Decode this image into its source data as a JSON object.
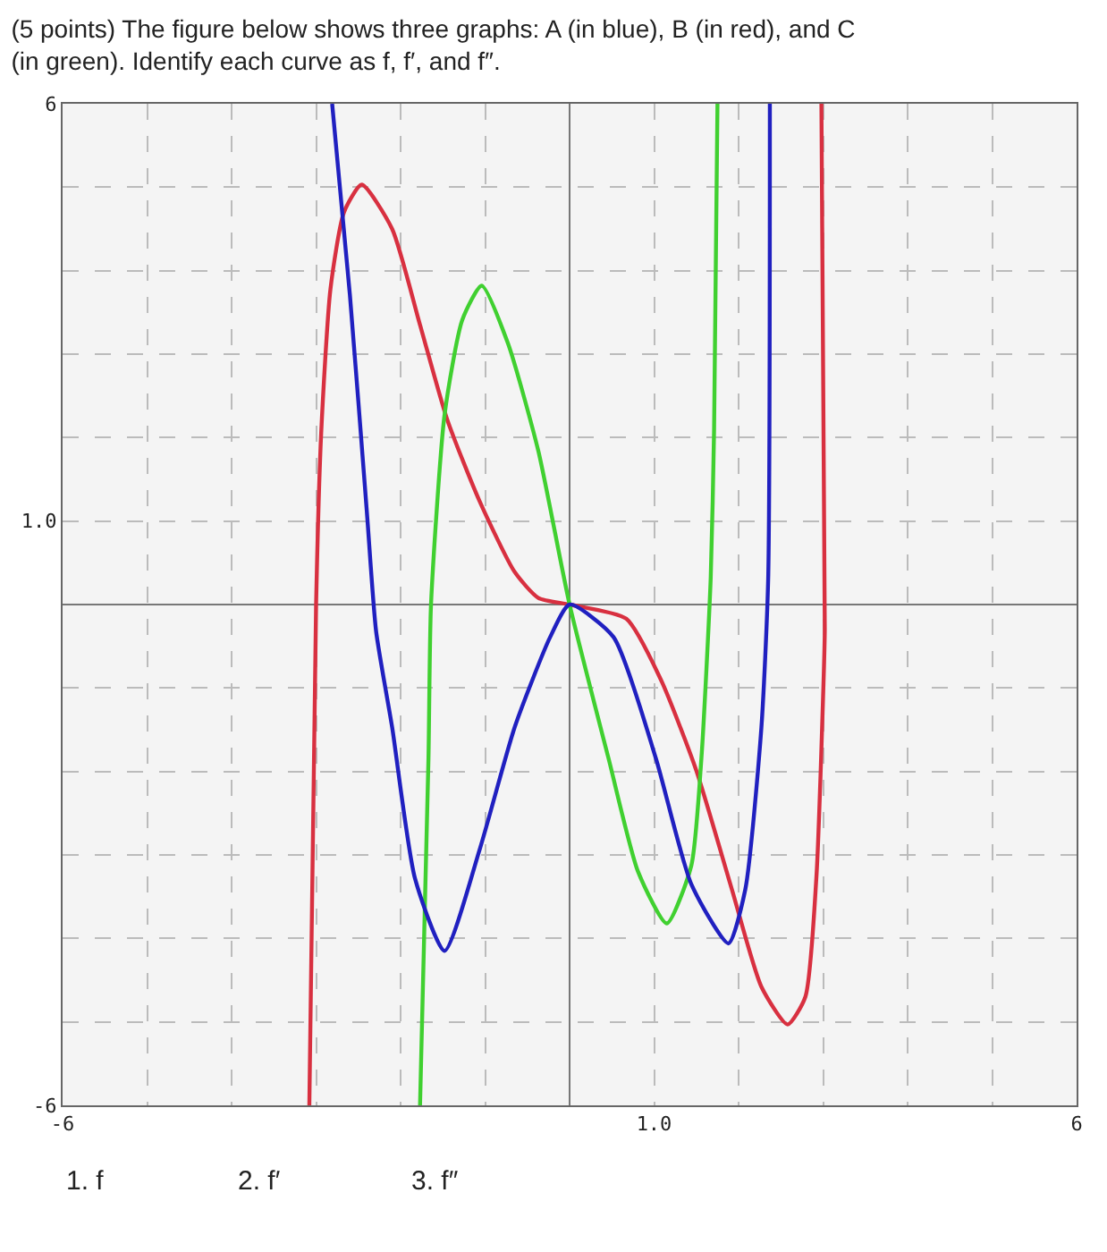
{
  "chart_data": {
    "type": "line",
    "title": "(5 points) The figure below shows three graphs: A (in blue), B (in red), and C (in green). Identify each curve as f, f′, and f″.",
    "xlim": [
      -6,
      6
    ],
    "ylim": [
      -6,
      6
    ],
    "xticks": [
      -6,
      {
        "value": -5,
        "label": null
      },
      {
        "value": -4,
        "label": null
      },
      {
        "value": -3,
        "label": null
      },
      {
        "value": -2,
        "label": null
      },
      {
        "value": -1,
        "label": null
      },
      {
        "value": 0,
        "label": null
      },
      {
        "value": 1,
        "label": "1.0"
      },
      {
        "value": 2,
        "label": null
      },
      {
        "value": 3,
        "label": null
      },
      {
        "value": 4,
        "label": null
      },
      {
        "value": 5,
        "label": null
      },
      6
    ],
    "yticks": [
      -6,
      {
        "value": -5,
        "label": null
      },
      {
        "value": -4,
        "label": null
      },
      {
        "value": -3,
        "label": null
      },
      {
        "value": -2,
        "label": null
      },
      {
        "value": -1,
        "label": null
      },
      {
        "value": 0,
        "label": null
      },
      {
        "value": 1,
        "label": "1.0"
      },
      {
        "value": 2,
        "label": null
      },
      {
        "value": 3,
        "label": null
      },
      {
        "value": 4,
        "label": null
      },
      {
        "value": 5,
        "label": null
      },
      6
    ],
    "grid": true,
    "marker": "none",
    "line_style": "solid",
    "series": [
      {
        "color": "#d83040",
        "x": [
          -3.08,
          -3.0,
          -2.94,
          -2.83,
          -2.67,
          -2.46,
          -2.1,
          -1.77,
          -1.45,
          -1.07,
          -0.65,
          -0.37,
          0,
          0.67,
          1.08,
          1.5,
          1.92,
          2.27,
          2.58,
          2.79,
          2.92,
          3.0,
          3.02,
          2.98
        ],
        "values": [
          -6,
          0,
          2.05,
          3.78,
          4.7,
          5.03,
          4.5,
          3.35,
          2.22,
          1.25,
          0.39,
          0.08,
          0,
          -0.17,
          -0.9,
          -1.99,
          -3.41,
          -4.58,
          -5.03,
          -4.7,
          -3.28,
          -1.1,
          -0.3,
          6
        ]
      },
      {
        "color": "#40d030",
        "x": [
          -1.77,
          -1.67,
          -1.64,
          -1.48,
          -1.27,
          -1.04,
          -0.73,
          -0.37,
          0,
          0.46,
          0.81,
          1.15,
          1.44,
          1.56,
          1.67,
          1.71,
          1.75
        ],
        "values": [
          -6,
          -1.84,
          0,
          2.27,
          3.41,
          3.82,
          3.13,
          1.84,
          0,
          -1.84,
          -3.2,
          -3.82,
          -3.13,
          -1.84,
          0.32,
          2.1,
          6
        ]
      },
      {
        "color": "#2020c0",
        "x": [
          -2.81,
          -2.6,
          -2.4,
          -2.29,
          -2.1,
          -1.83,
          -1.48,
          -1.06,
          -0.65,
          -0.23,
          0,
          0.52,
          1.02,
          1.44,
          1.88,
          2.08,
          2.27,
          2.35,
          2.37
        ],
        "values": [
          6,
          3.71,
          1.12,
          -0.32,
          -1.47,
          -3.28,
          -4.15,
          -2.92,
          -1.47,
          -0.39,
          0,
          -0.39,
          -1.84,
          -3.35,
          -4.06,
          -3.41,
          -1.47,
          0.3,
          6
        ]
      }
    ],
    "annotations": [
      "1. f",
      "2. f′",
      "3. f″"
    ]
  }
}
